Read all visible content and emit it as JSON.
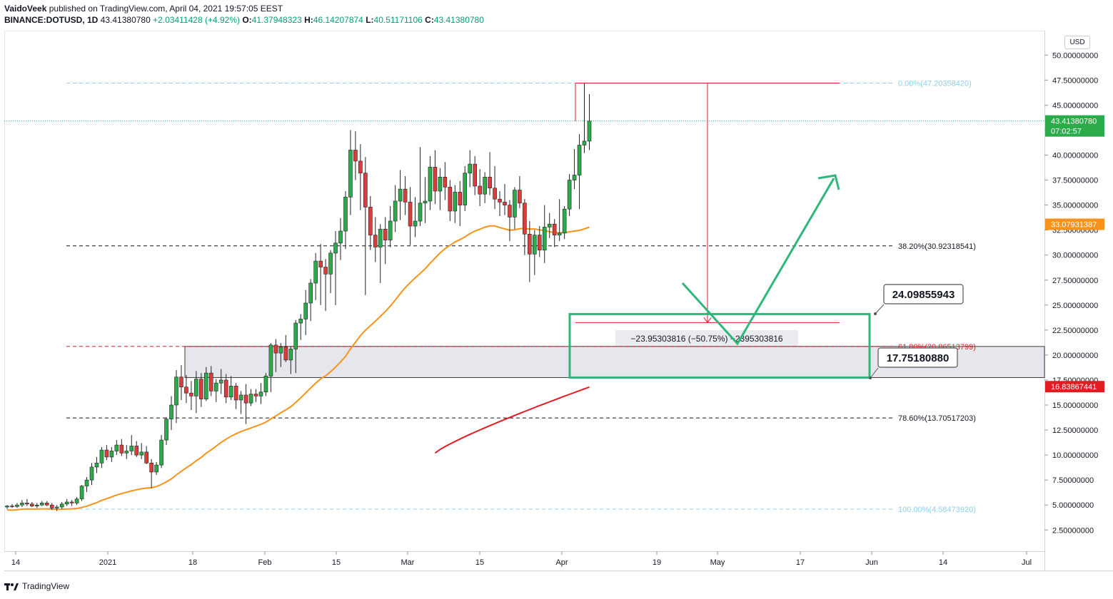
{
  "header": {
    "author": "VaidoVeek",
    "published_text": "published on TradingView.com, April 04, 2021 19:57:05 EEST",
    "symbol": "BINANCE:DOTUSD, 1D",
    "last": "43.41380780",
    "change": "+2.03411428 (+4.92%)",
    "o_label": "O:",
    "o_value": "41.37948323",
    "h_label": "H:",
    "h_value": "46.14207874",
    "l_label": "L:",
    "l_value": "40.51171106",
    "c_label": "C:",
    "c_value": "43.41380780"
  },
  "currency_button": "USD",
  "footer": {
    "brand": "TradingView"
  },
  "colors": {
    "up": "#26a69a",
    "down": "#ef5350",
    "green_candle": "#2bab4a",
    "red_candle": "#e03b3b",
    "ma50": "#f7931a",
    "ma200": "#e31b23",
    "box": "#2fb67a",
    "fib_blue": "#8fd0e8"
  },
  "chart_data": {
    "type": "candlestick",
    "symbol": "BINANCE:DOTUSD",
    "interval": "1D",
    "ylim": [
      0.5,
      52.5
    ],
    "y_ticks": [
      "2.50000000",
      "5.00000000",
      "7.50000000",
      "10.00000000",
      "12.50000000",
      "15.00000000",
      "17.50000000",
      "20.00000000",
      "22.50000000",
      "25.00000000",
      "27.50000000",
      "30.00000000",
      "32.50000000",
      "35.00000000",
      "37.50000000",
      "40.00000000",
      "42.50000000",
      "45.00000000",
      "47.50000000",
      "50.00000000"
    ],
    "x_ticks": [
      "14",
      "2021",
      "18",
      "Feb",
      "15",
      "Mar",
      "15",
      "Apr",
      "19",
      "May",
      "17",
      "Jun",
      "14",
      "Jul"
    ],
    "price_labels": {
      "last": "43.41380780",
      "countdown": "07:02:57",
      "ma50": "33.07931387",
      "ma200": "16.83867441"
    },
    "fibonacci": [
      {
        "level": "0.00%",
        "value": "47.20358420"
      },
      {
        "level": "38.20%",
        "value": "30.92318541"
      },
      {
        "level": "61.80%",
        "value": "20.86513799"
      },
      {
        "level": "78.60%",
        "value": "13.70517203"
      },
      {
        "level": "100.00%",
        "value": "4.58473920"
      }
    ],
    "measure_label": "−23.95303816 (−50.75%) −2395303816",
    "callouts": {
      "box_top": "24.09855943",
      "box_bottom": "17.75180880"
    },
    "series": [
      [
        4.8,
        5.0,
        4.6,
        4.9
      ],
      [
        4.9,
        5.1,
        4.7,
        4.85
      ],
      [
        4.85,
        5.2,
        4.7,
        5.0
      ],
      [
        5.0,
        5.5,
        4.8,
        5.2
      ],
      [
        5.2,
        5.6,
        4.9,
        5.1
      ],
      [
        5.1,
        5.3,
        4.8,
        4.9
      ],
      [
        4.9,
        5.2,
        4.7,
        5.0
      ],
      [
        5.0,
        5.4,
        4.9,
        5.2
      ],
      [
        5.2,
        5.4,
        4.9,
        5.0
      ],
      [
        5.0,
        5.2,
        4.5,
        4.7
      ],
      [
        4.7,
        5.0,
        4.4,
        4.8
      ],
      [
        4.8,
        5.3,
        4.6,
        5.1
      ],
      [
        5.1,
        5.6,
        4.9,
        5.3
      ],
      [
        5.3,
        5.5,
        4.9,
        5.2
      ],
      [
        5.2,
        5.8,
        5.0,
        5.6
      ],
      [
        5.6,
        7.0,
        5.4,
        6.9
      ],
      [
        6.9,
        7.8,
        6.3,
        7.5
      ],
      [
        7.5,
        9.2,
        7.0,
        8.8
      ],
      [
        8.8,
        9.8,
        8.2,
        9.2
      ],
      [
        9.2,
        10.8,
        8.7,
        10.5
      ],
      [
        10.5,
        11.0,
        9.5,
        9.8
      ],
      [
        9.8,
        10.8,
        9.3,
        10.4
      ],
      [
        10.4,
        11.5,
        10.0,
        11.0
      ],
      [
        11.0,
        11.6,
        9.9,
        10.2
      ],
      [
        10.2,
        11.0,
        9.6,
        10.4
      ],
      [
        10.4,
        12.0,
        10.0,
        10.9
      ],
      [
        10.9,
        11.4,
        9.8,
        10.0
      ],
      [
        10.0,
        11.2,
        9.6,
        10.3
      ],
      [
        10.3,
        10.9,
        9.1,
        9.2
      ],
      [
        9.2,
        9.6,
        6.7,
        8.3
      ],
      [
        8.3,
        9.3,
        8.0,
        9.0
      ],
      [
        9.0,
        12.0,
        8.7,
        11.5
      ],
      [
        11.5,
        13.8,
        11.0,
        13.6
      ],
      [
        13.6,
        15.9,
        12.5,
        15.0
      ],
      [
        15.0,
        18.5,
        13.2,
        17.8
      ],
      [
        17.8,
        19.0,
        15.5,
        16.8
      ],
      [
        16.8,
        18.0,
        15.2,
        16.2
      ],
      [
        16.2,
        17.4,
        14.5,
        15.9
      ],
      [
        15.9,
        18.4,
        14.2,
        17.6
      ],
      [
        17.6,
        18.2,
        14.8,
        15.6
      ],
      [
        15.6,
        18.8,
        15.4,
        18.2
      ],
      [
        18.2,
        18.9,
        15.9,
        16.4
      ],
      [
        16.4,
        17.6,
        15.3,
        17.2
      ],
      [
        17.2,
        18.6,
        16.1,
        17.5
      ],
      [
        17.5,
        18.1,
        15.2,
        15.8
      ],
      [
        15.8,
        17.9,
        15.5,
        16.9
      ],
      [
        16.9,
        17.2,
        14.6,
        15.5
      ],
      [
        15.5,
        16.4,
        14.1,
        16.0
      ],
      [
        16.0,
        17.1,
        13.1,
        15.2
      ],
      [
        15.2,
        16.6,
        14.9,
        16.1
      ],
      [
        16.1,
        16.6,
        15.3,
        15.9
      ],
      [
        15.9,
        17.2,
        15.1,
        16.3
      ],
      [
        16.3,
        18.2,
        15.9,
        17.9
      ],
      [
        17.9,
        21.2,
        16.3,
        21.0
      ],
      [
        21.0,
        21.6,
        18.3,
        20.2
      ],
      [
        20.2,
        21.2,
        18.8,
        20.8
      ],
      [
        20.8,
        22.0,
        19.3,
        19.5
      ],
      [
        19.5,
        20.9,
        18.1,
        20.6
      ],
      [
        20.6,
        23.5,
        18.2,
        23.2
      ],
      [
        23.2,
        24.1,
        21.5,
        23.6
      ],
      [
        23.6,
        26.5,
        22.0,
        25.2
      ],
      [
        25.2,
        27.6,
        23.4,
        27.2
      ],
      [
        27.2,
        30.2,
        25.5,
        29.4
      ],
      [
        29.4,
        31.1,
        25.0,
        28.8
      ],
      [
        28.8,
        29.6,
        24.4,
        28.1
      ],
      [
        28.1,
        30.5,
        26.2,
        30.2
      ],
      [
        30.2,
        32.4,
        25.0,
        31.2
      ],
      [
        31.2,
        33.7,
        29.5,
        32.4
      ],
      [
        32.4,
        36.4,
        30.6,
        35.8
      ],
      [
        35.8,
        42.5,
        34.0,
        40.5
      ],
      [
        40.5,
        42.4,
        37.5,
        39.4
      ],
      [
        39.4,
        41.1,
        34.5,
        38.2
      ],
      [
        38.2,
        39.8,
        26.0,
        34.8
      ],
      [
        34.8,
        35.9,
        30.5,
        32.0
      ],
      [
        32.0,
        33.8,
        29.3,
        30.8
      ],
      [
        30.8,
        33.1,
        27.2,
        32.6
      ],
      [
        32.6,
        33.8,
        29.1,
        31.5
      ],
      [
        31.5,
        34.9,
        30.8,
        33.4
      ],
      [
        33.4,
        37.0,
        32.3,
        35.4
      ],
      [
        35.4,
        38.5,
        33.5,
        36.6
      ],
      [
        36.6,
        37.9,
        34.0,
        35.3
      ],
      [
        35.3,
        36.8,
        31.0,
        32.9
      ],
      [
        32.9,
        35.8,
        31.8,
        33.4
      ],
      [
        33.4,
        40.8,
        32.9,
        35.2
      ],
      [
        35.2,
        37.8,
        33.2,
        35.4
      ],
      [
        35.4,
        39.9,
        34.5,
        38.8
      ],
      [
        38.8,
        40.5,
        35.1,
        36.4
      ],
      [
        36.4,
        38.7,
        34.5,
        37.8
      ],
      [
        37.8,
        39.3,
        35.5,
        36.8
      ],
      [
        36.8,
        37.5,
        33.4,
        34.4
      ],
      [
        34.4,
        37.0,
        33.2,
        36.3
      ],
      [
        36.3,
        37.4,
        32.9,
        35.0
      ],
      [
        35.0,
        38.9,
        34.4,
        38.2
      ],
      [
        38.2,
        40.5,
        36.8,
        39.1
      ],
      [
        39.1,
        39.9,
        36.0,
        36.9
      ],
      [
        36.9,
        38.6,
        34.9,
        36.1
      ],
      [
        36.1,
        38.3,
        35.2,
        37.8
      ],
      [
        37.8,
        40.3,
        36.0,
        36.7
      ],
      [
        36.7,
        38.9,
        34.6,
        35.6
      ],
      [
        35.6,
        36.4,
        33.9,
        35.3
      ],
      [
        35.3,
        37.1,
        34.0,
        35.0
      ],
      [
        35.0,
        35.5,
        31.4,
        33.8
      ],
      [
        33.8,
        36.8,
        32.6,
        36.5
      ],
      [
        36.5,
        37.9,
        34.7,
        35.2
      ],
      [
        35.2,
        35.6,
        30.0,
        32.1
      ],
      [
        32.1,
        33.4,
        27.3,
        30.1
      ],
      [
        30.1,
        32.5,
        28.0,
        32.0
      ],
      [
        32.0,
        32.9,
        29.8,
        30.5
      ],
      [
        30.5,
        35.0,
        29.2,
        32.8
      ],
      [
        32.8,
        34.2,
        31.7,
        33.1
      ],
      [
        33.1,
        33.6,
        30.8,
        32.0
      ],
      [
        32.0,
        35.6,
        31.4,
        32.2
      ],
      [
        32.2,
        34.9,
        31.6,
        34.6
      ],
      [
        34.6,
        38.1,
        33.9,
        37.5
      ],
      [
        37.5,
        40.6,
        36.6,
        38.0
      ],
      [
        38.0,
        42.1,
        34.6,
        41.0
      ],
      [
        41.0,
        47.2,
        40.2,
        41.4
      ],
      [
        41.4,
        46.1,
        40.5,
        43.4
      ]
    ]
  }
}
